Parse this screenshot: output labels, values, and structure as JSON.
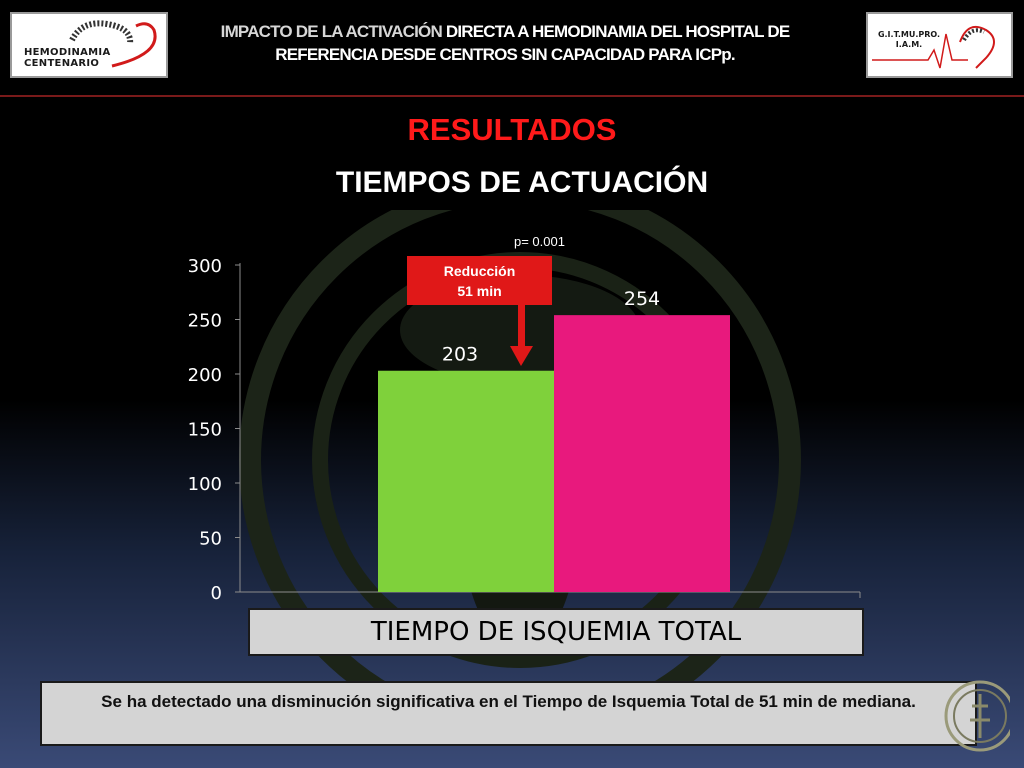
{
  "header": {
    "title_part1": "IMPACTO DE LA ACTIVACIÓN ",
    "title_part2": "DIRECTA A HEMODINAMIA DEL HOSPITAL DE REFERENCIA DESDE CENTROS SIN CAPACIDAD PARA ICPp.",
    "logo_left_text_1": "HEMODINAMIA",
    "logo_left_text_2": "CENTENARIO",
    "logo_right_text_1": "G.I.T.MU.PRO.",
    "logo_right_text_2": "I.A.M."
  },
  "section_title": "RESULTADOS",
  "subtitle": "TIEMPOS DE ACTUACIÓN",
  "annotation": {
    "p_value": "p= 0.001",
    "reduction_line1": "Reducción",
    "reduction_line2": "51 min"
  },
  "conclusion": "Se ha detectado una disminución significativa en el  Tiempo de Isquemia Total de 51 min de mediana.",
  "colors": {
    "accent_red": "#ff1a1a",
    "bar_green": "#7fd13b",
    "bar_pink": "#e8197d"
  },
  "chart_data": {
    "type": "bar",
    "categories": [
      "",
      ""
    ],
    "values": [
      203,
      254
    ],
    "data_labels": [
      "203",
      "254"
    ],
    "xlabel": "TIEMPO DE ISQUEMIA TOTAL",
    "ylabel": "",
    "ylim": [
      0,
      300
    ],
    "yticks": [
      0,
      50,
      100,
      150,
      200,
      250,
      300
    ],
    "bar_colors": [
      "#7fd13b",
      "#e8197d"
    ],
    "grid": false
  }
}
